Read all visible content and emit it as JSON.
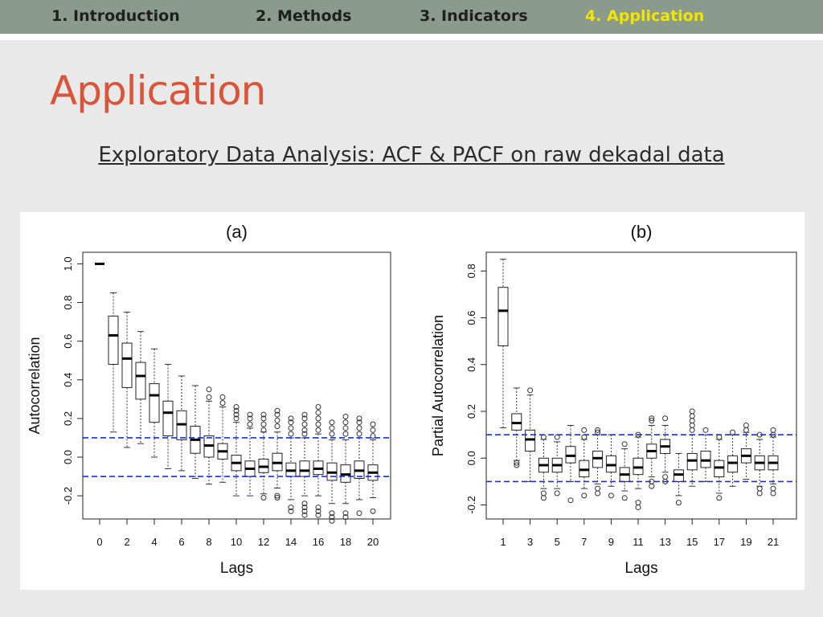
{
  "nav": {
    "items": [
      {
        "label": "1. Introduction",
        "active": false
      },
      {
        "label": "2. Methods",
        "active": false
      },
      {
        "label": "3. Indicators",
        "active": false
      },
      {
        "label": "4. Application",
        "active": true
      }
    ],
    "active_color": "#f2e600"
  },
  "page": {
    "title": "Application",
    "subtitle": "Exploratory Data Analysis: ACF & PACF on raw dekadal data",
    "title_color": "#d8553a"
  },
  "chart_data": [
    {
      "type": "boxplot",
      "panel_label": "(a)",
      "xlabel": "Lags",
      "ylabel": "Autocorrelation",
      "ylim": [
        -0.32,
        1.06
      ],
      "yticks": [
        -0.2,
        0.0,
        0.2,
        0.4,
        0.6,
        0.8,
        1.0
      ],
      "xticks": [
        0,
        2,
        4,
        6,
        8,
        10,
        12,
        14,
        16,
        18,
        20
      ],
      "confidence_bounds": [
        0.1,
        -0.1
      ],
      "bound_color": "#1a2fd6",
      "boxes": [
        {
          "lag": 0,
          "min": 1.0,
          "q1": 1.0,
          "median": 1.0,
          "q3": 1.0,
          "max": 1.0,
          "outliers": []
        },
        {
          "lag": 1,
          "min": 0.13,
          "q1": 0.48,
          "median": 0.63,
          "q3": 0.73,
          "max": 0.85,
          "outliers": []
        },
        {
          "lag": 2,
          "min": 0.05,
          "q1": 0.36,
          "median": 0.51,
          "q3": 0.59,
          "max": 0.75,
          "outliers": []
        },
        {
          "lag": 3,
          "min": 0.07,
          "q1": 0.3,
          "median": 0.42,
          "q3": 0.49,
          "max": 0.65,
          "outliers": []
        },
        {
          "lag": 4,
          "min": 0.0,
          "q1": 0.18,
          "median": 0.32,
          "q3": 0.38,
          "max": 0.56,
          "outliers": []
        },
        {
          "lag": 5,
          "min": -0.06,
          "q1": 0.11,
          "median": 0.23,
          "q3": 0.29,
          "max": 0.48,
          "outliers": []
        },
        {
          "lag": 6,
          "min": -0.07,
          "q1": 0.09,
          "median": 0.17,
          "q3": 0.24,
          "max": 0.42,
          "outliers": []
        },
        {
          "lag": 7,
          "min": -0.11,
          "q1": 0.02,
          "median": 0.09,
          "q3": 0.16,
          "max": 0.37,
          "outliers": []
        },
        {
          "lag": 8,
          "min": -0.14,
          "q1": 0.0,
          "median": 0.06,
          "q3": 0.11,
          "max": 0.29,
          "outliers": [
            0.31,
            0.35
          ]
        },
        {
          "lag": 9,
          "min": -0.13,
          "q1": -0.01,
          "median": 0.03,
          "q3": 0.07,
          "max": 0.26,
          "outliers": [
            0.28,
            0.31
          ]
        },
        {
          "lag": 10,
          "min": -0.2,
          "q1": -0.07,
          "median": -0.03,
          "q3": 0.01,
          "max": 0.18,
          "outliers": [
            0.2,
            0.22,
            0.24,
            0.26
          ]
        },
        {
          "lag": 11,
          "min": -0.2,
          "q1": -0.1,
          "median": -0.06,
          "q3": -0.02,
          "max": 0.15,
          "outliers": [
            0.17,
            0.2,
            0.22
          ]
        },
        {
          "lag": 12,
          "min": -0.19,
          "q1": -0.08,
          "median": -0.05,
          "q3": -0.01,
          "max": 0.13,
          "outliers": [
            -0.21,
            0.14,
            0.17,
            0.2,
            0.22
          ]
        },
        {
          "lag": 13,
          "min": -0.16,
          "q1": -0.07,
          "median": -0.03,
          "q3": 0.02,
          "max": 0.13,
          "outliers": [
            -0.21,
            -0.2,
            0.16,
            0.19,
            0.22,
            0.24
          ]
        },
        {
          "lag": 14,
          "min": -0.22,
          "q1": -0.1,
          "median": -0.07,
          "q3": -0.03,
          "max": 0.1,
          "outliers": [
            -0.28,
            -0.26,
            0.12,
            0.15,
            0.18,
            0.2
          ]
        },
        {
          "lag": 15,
          "min": -0.2,
          "q1": -0.1,
          "median": -0.07,
          "q3": -0.02,
          "max": 0.1,
          "outliers": [
            -0.3,
            -0.28,
            -0.26,
            -0.24,
            0.12,
            0.14,
            0.17,
            0.2,
            0.22
          ]
        },
        {
          "lag": 16,
          "min": -0.2,
          "q1": -0.09,
          "median": -0.06,
          "q3": -0.02,
          "max": 0.12,
          "outliers": [
            -0.3,
            -0.28,
            -0.26,
            0.14,
            0.17,
            0.2,
            0.23,
            0.26
          ]
        },
        {
          "lag": 17,
          "min": -0.24,
          "q1": -0.12,
          "median": -0.08,
          "q3": -0.03,
          "max": 0.09,
          "outliers": [
            -0.33,
            -0.31,
            -0.29,
            0.12,
            0.15,
            0.18
          ]
        },
        {
          "lag": 18,
          "min": -0.24,
          "q1": -0.13,
          "median": -0.09,
          "q3": -0.04,
          "max": 0.09,
          "outliers": [
            -0.31,
            -0.29,
            0.12,
            0.15,
            0.18,
            0.21
          ]
        },
        {
          "lag": 19,
          "min": -0.22,
          "q1": -0.11,
          "median": -0.07,
          "q3": -0.02,
          "max": 0.1,
          "outliers": [
            -0.29,
            0.12,
            0.15,
            0.18,
            0.2
          ]
        },
        {
          "lag": 20,
          "min": -0.21,
          "q1": -0.12,
          "median": -0.08,
          "q3": -0.04,
          "max": 0.09,
          "outliers": [
            -0.28,
            0.11,
            0.14,
            0.17
          ]
        }
      ]
    },
    {
      "type": "boxplot",
      "panel_label": "(b)",
      "xlabel": "Lags",
      "ylabel": "Partial Autocorrelation",
      "ylim": [
        -0.26,
        0.88
      ],
      "yticks": [
        -0.2,
        0.0,
        0.2,
        0.4,
        0.6,
        0.8
      ],
      "xticks": [
        1,
        3,
        5,
        7,
        9,
        11,
        13,
        15,
        17,
        19,
        21
      ],
      "confidence_bounds": [
        0.1,
        -0.1
      ],
      "bound_color": "#1a2fd6",
      "boxes": [
        {
          "lag": 1,
          "min": 0.13,
          "q1": 0.48,
          "median": 0.63,
          "q3": 0.73,
          "max": 0.85,
          "outliers": []
        },
        {
          "lag": 2,
          "min": -0.01,
          "q1": 0.12,
          "median": 0.15,
          "q3": 0.19,
          "max": 0.3,
          "outliers": [
            -0.02,
            -0.03
          ]
        },
        {
          "lag": 3,
          "min": -0.1,
          "q1": 0.03,
          "median": 0.08,
          "q3": 0.12,
          "max": 0.27,
          "outliers": [
            0.29
          ]
        },
        {
          "lag": 4,
          "min": -0.13,
          "q1": -0.06,
          "median": -0.03,
          "q3": 0.0,
          "max": 0.08,
          "outliers": [
            -0.15,
            -0.17,
            0.09
          ]
        },
        {
          "lag": 5,
          "min": -0.13,
          "q1": -0.06,
          "median": -0.03,
          "q3": 0.0,
          "max": 0.07,
          "outliers": [
            -0.15,
            0.09
          ]
        },
        {
          "lag": 6,
          "min": -0.1,
          "q1": -0.02,
          "median": 0.01,
          "q3": 0.05,
          "max": 0.14,
          "outliers": [
            -0.18
          ]
        },
        {
          "lag": 7,
          "min": -0.13,
          "q1": -0.08,
          "median": -0.05,
          "q3": -0.01,
          "max": 0.08,
          "outliers": [
            -0.16,
            0.09,
            0.12
          ]
        },
        {
          "lag": 8,
          "min": -0.11,
          "q1": -0.04,
          "median": 0.0,
          "q3": 0.03,
          "max": 0.1,
          "outliers": [
            -0.13,
            -0.15,
            0.11,
            0.12
          ]
        },
        {
          "lag": 9,
          "min": -0.12,
          "q1": -0.06,
          "median": -0.03,
          "q3": 0.01,
          "max": 0.1,
          "outliers": [
            -0.16
          ]
        },
        {
          "lag": 10,
          "min": -0.14,
          "q1": -0.1,
          "median": -0.07,
          "q3": -0.04,
          "max": 0.04,
          "outliers": [
            -0.17,
            0.06
          ]
        },
        {
          "lag": 11,
          "min": -0.13,
          "q1": -0.07,
          "median": -0.04,
          "q3": 0.0,
          "max": 0.09,
          "outliers": [
            -0.19,
            -0.21,
            0.1
          ]
        },
        {
          "lag": 12,
          "min": -0.08,
          "q1": 0.0,
          "median": 0.03,
          "q3": 0.06,
          "max": 0.14,
          "outliers": [
            -0.1,
            -0.12,
            0.16,
            0.17
          ]
        },
        {
          "lag": 13,
          "min": -0.06,
          "q1": 0.02,
          "median": 0.05,
          "q3": 0.08,
          "max": 0.14,
          "outliers": [
            -0.08,
            -0.1,
            0.17
          ]
        },
        {
          "lag": 14,
          "min": -0.16,
          "q1": -0.1,
          "median": -0.07,
          "q3": -0.05,
          "max": 0.02,
          "outliers": [
            -0.19
          ]
        },
        {
          "lag": 15,
          "min": -0.12,
          "q1": -0.05,
          "median": -0.01,
          "q3": 0.02,
          "max": 0.1,
          "outliers": [
            0.12,
            0.14,
            0.16,
            0.18,
            0.2
          ]
        },
        {
          "lag": 16,
          "min": -0.1,
          "q1": -0.04,
          "median": -0.01,
          "q3": 0.03,
          "max": 0.1,
          "outliers": [
            0.12
          ]
        },
        {
          "lag": 17,
          "min": -0.15,
          "q1": -0.08,
          "median": -0.04,
          "q3": -0.01,
          "max": 0.08,
          "outliers": [
            -0.17,
            0.09
          ]
        },
        {
          "lag": 18,
          "min": -0.12,
          "q1": -0.06,
          "median": -0.02,
          "q3": 0.01,
          "max": 0.1,
          "outliers": [
            0.11
          ]
        },
        {
          "lag": 19,
          "min": -0.09,
          "q1": -0.02,
          "median": 0.01,
          "q3": 0.04,
          "max": 0.11,
          "outliers": [
            0.12,
            0.14
          ]
        },
        {
          "lag": 20,
          "min": -0.12,
          "q1": -0.05,
          "median": -0.02,
          "q3": 0.01,
          "max": 0.08,
          "outliers": [
            -0.13,
            -0.15,
            0.1
          ]
        },
        {
          "lag": 21,
          "min": -0.11,
          "q1": -0.05,
          "median": -0.02,
          "q3": 0.01,
          "max": 0.09,
          "outliers": [
            -0.13,
            -0.15,
            0.1,
            0.12
          ]
        }
      ]
    }
  ]
}
